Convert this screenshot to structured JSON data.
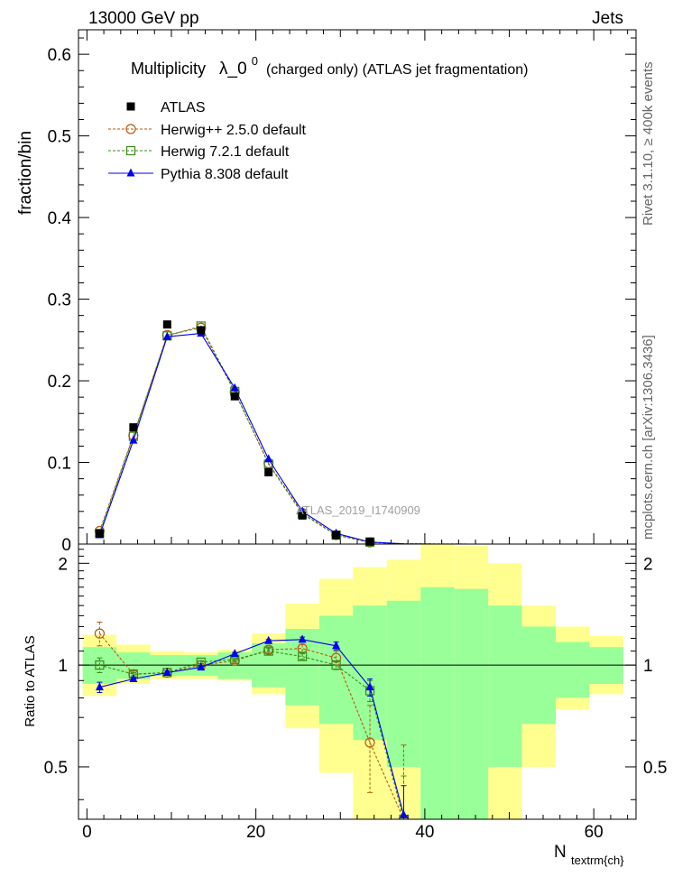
{
  "header": {
    "energy_label": "13000 GeV pp",
    "process_label": "Jets",
    "title_main": "Multiplicity",
    "title_lambda": "λ_0",
    "title_exp": "0",
    "title_suffix": "(charged only) (ATLAS jet fragmentation)",
    "watermark": "ATLAS_2019_I1740909",
    "side_rivet": "Rivet 3.1.10, ≥ 400k events",
    "side_mcplots": "mcplots.cern.ch [arXiv:1306.3436]"
  },
  "colors": {
    "atlas": "#000000",
    "herwigpp": "#b25a10",
    "herwig7": "#3a8a1a",
    "pythia": "#0000ee",
    "band_outer": "#ffff90",
    "band_inner": "#99ff99"
  },
  "chart_data": [
    {
      "type": "line",
      "panel": "main",
      "ylabel": "fraction/bin",
      "ylim": [
        0,
        0.63
      ],
      "y_ticks": [
        0,
        0.1,
        0.2,
        0.3,
        0.4,
        0.5,
        0.6
      ],
      "y_tick_labels": [
        "0",
        "0.1",
        "0.2",
        "0.3",
        "0.4",
        "0.5",
        "0.6"
      ],
      "xlim": [
        -1,
        65
      ],
      "legend": "top-left",
      "x": [
        1.5,
        5.5,
        9.5,
        13.5,
        17.5,
        21.5,
        25.5,
        29.5,
        33.5,
        37.5,
        41.5,
        45.5,
        49.5,
        53.5,
        57.5,
        61.5
      ],
      "series": [
        {
          "name": "ATLAS",
          "key": "atlas",
          "marker": "square-filled",
          "values": [
            0.013,
            0.143,
            0.269,
            0.262,
            0.181,
            0.088,
            0.035,
            0.011,
            0.003,
            0.001,
            0.0005,
            0.0003,
            0.0002,
            0.0001,
            0.0001,
            0.0001
          ]
        },
        {
          "name": "Herwig++ 2.5.0 default",
          "key": "herwigpp",
          "marker": "circle-open",
          "values": [
            0.016,
            0.133,
            0.256,
            0.265,
            0.186,
            0.099,
            0.038,
            0.011,
            0.002,
            0.0003,
            0.0001,
            0.0,
            0.0,
            0.0,
            0.0,
            0.0
          ]
        },
        {
          "name": "Herwig 7.2.1 default",
          "key": "herwig7",
          "marker": "square-open",
          "values": [
            0.013,
            0.132,
            0.255,
            0.267,
            0.187,
            0.098,
            0.037,
            0.011,
            0.0025,
            0.0004,
            0.0001,
            0.0,
            0.0,
            0.0,
            0.0,
            0.0
          ]
        },
        {
          "name": "Pythia 8.308 default",
          "key": "pythia",
          "marker": "triangle-filled",
          "values": [
            0.011,
            0.127,
            0.254,
            0.258,
            0.191,
            0.104,
            0.04,
            0.013,
            0.0025,
            0.0002,
            0.0,
            0.0,
            0.0,
            0.0,
            0.0,
            0.0
          ]
        }
      ]
    },
    {
      "type": "line",
      "panel": "ratio",
      "ylabel": "Ratio to ATLAS",
      "xlabel": "N",
      "xlabel_sub": "textrm{ch}",
      "ylim": [
        0.35,
        2.28
      ],
      "y_ticks": [
        0.5,
        1,
        2
      ],
      "y_tick_labels": [
        "0.5",
        "1",
        "2"
      ],
      "xlim": [
        -1,
        65
      ],
      "x_ticks": [
        0,
        20,
        40,
        60
      ],
      "x_tick_labels": [
        "0",
        "20",
        "40",
        "60"
      ],
      "bin_edges": [
        -0.5,
        3.5,
        7.5,
        11.5,
        15.5,
        19.5,
        23.5,
        27.5,
        31.5,
        35.5,
        39.5,
        43.5,
        47.5,
        51.5,
        55.5,
        59.5,
        63.5
      ],
      "band_outer": {
        "lo": [
          0.81,
          0.88,
          0.91,
          0.91,
          0.9,
          0.82,
          0.65,
          0.48,
          0.35,
          0.35,
          0.35,
          0.35,
          0.35,
          0.5,
          0.74,
          0.82
        ],
        "hi": [
          1.23,
          1.15,
          1.1,
          1.09,
          1.11,
          1.24,
          1.52,
          1.8,
          1.95,
          2.05,
          2.28,
          2.25,
          2.0,
          1.5,
          1.3,
          1.22
        ]
      },
      "band_inner": {
        "lo": [
          0.88,
          0.91,
          0.93,
          0.93,
          0.91,
          0.86,
          0.76,
          0.67,
          0.6,
          0.5,
          0.35,
          0.35,
          0.5,
          0.67,
          0.8,
          0.88
        ],
        "hi": [
          1.13,
          1.09,
          1.07,
          1.07,
          1.09,
          1.16,
          1.28,
          1.4,
          1.5,
          1.55,
          1.7,
          1.68,
          1.5,
          1.3,
          1.17,
          1.13
        ]
      },
      "x": [
        1.5,
        5.5,
        9.5,
        13.5,
        17.5,
        21.5,
        25.5,
        29.5,
        33.5,
        37.5
      ],
      "series": [
        {
          "name": "Herwig++ 2.5.0 default",
          "key": "herwigpp",
          "marker": "circle-open",
          "values": [
            1.24,
            0.94,
            0.95,
            1.0,
            1.03,
            1.11,
            1.12,
            1.05,
            0.59,
            0.35
          ],
          "err": [
            0.1,
            0.02,
            0.01,
            0.01,
            0.01,
            0.02,
            0.03,
            0.05,
            0.17,
            0.23
          ]
        },
        {
          "name": "Herwig 7.2.1 default",
          "key": "herwig7",
          "marker": "square-open",
          "values": [
            1.0,
            0.94,
            0.95,
            1.02,
            1.04,
            1.1,
            1.06,
            1.0,
            0.84,
            0.35
          ],
          "err": [
            0.05,
            0.01,
            0.01,
            0.01,
            0.01,
            0.02,
            0.02,
            0.03,
            0.06,
            0.12
          ]
        },
        {
          "name": "Pythia 8.308 default",
          "key": "pythia",
          "marker": "triangle-filled",
          "values": [
            0.86,
            0.91,
            0.95,
            0.985,
            1.08,
            1.18,
            1.19,
            1.14,
            0.86,
            0.36
          ],
          "err": [
            0.03,
            0.01,
            0.01,
            0.01,
            0.01,
            0.01,
            0.02,
            0.03,
            0.05,
            0.08
          ]
        }
      ]
    }
  ]
}
